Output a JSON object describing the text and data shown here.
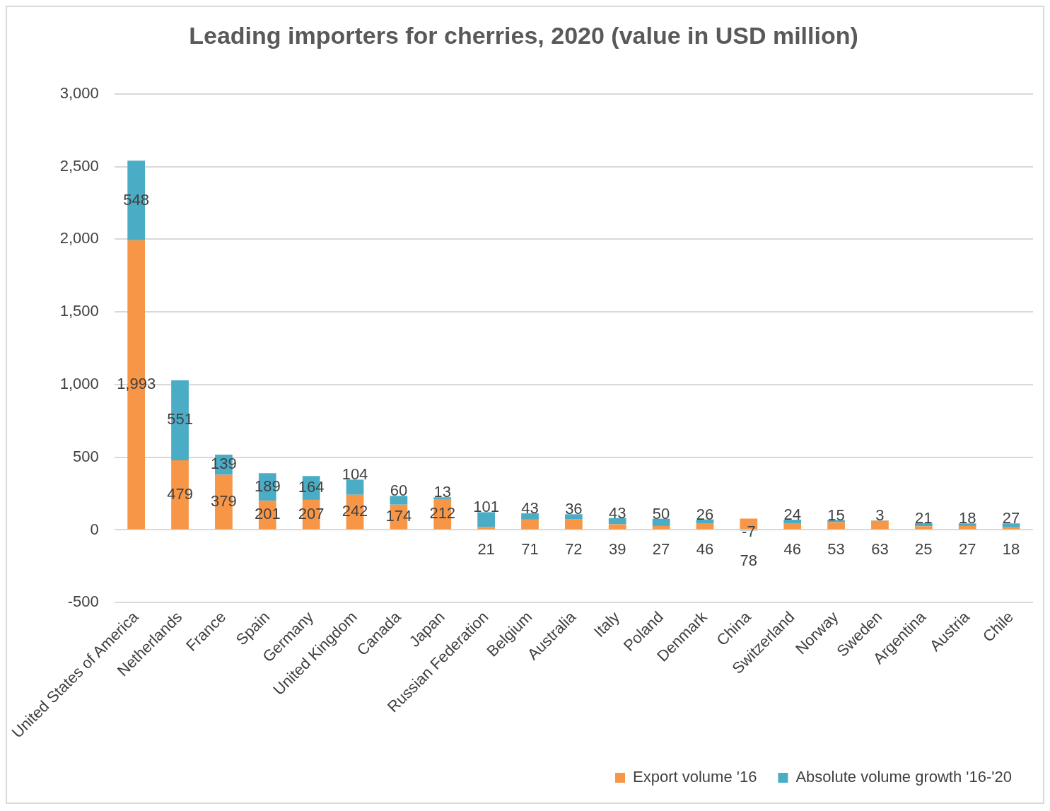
{
  "chart_data": {
    "type": "bar",
    "title": "Leading importers for cherries, 2020 (value in USD million)",
    "categories": [
      "United States of America",
      "Netherlands",
      "France",
      "Spain",
      "Germany",
      "United Kingdom",
      "Canada",
      "Japan",
      "Russian Federation",
      "Belgium",
      "Australia",
      "Italy",
      "Poland",
      "Denmark",
      "China",
      "Switzerland",
      "Norway",
      "Sweden",
      "Argentina",
      "Austria",
      "Chile"
    ],
    "series": [
      {
        "name": "Export volume '16",
        "color": "#f79646",
        "values": [
          1993,
          479,
          379,
          201,
          207,
          242,
          174,
          212,
          21,
          71,
          72,
          39,
          27,
          46,
          78,
          46,
          53,
          63,
          25,
          27,
          18
        ],
        "value_labels": [
          "1,993",
          "479",
          "379",
          "201",
          "207",
          "242",
          "174",
          "212",
          "21",
          "71",
          "72",
          "39",
          "27",
          "46",
          "78",
          "46",
          "53",
          "63",
          "25",
          "27",
          "18"
        ]
      },
      {
        "name": "Absolute volume growth '16-'20",
        "color": "#4bacc6",
        "values": [
          548,
          551,
          139,
          189,
          164,
          104,
          60,
          13,
          101,
          43,
          36,
          43,
          50,
          26,
          -7,
          24,
          15,
          3,
          21,
          18,
          27
        ],
        "value_labels": [
          "548",
          "551",
          "139",
          "189",
          "164",
          "104",
          "60",
          "13",
          "101",
          "43",
          "36",
          "43",
          "50",
          "26",
          "-7",
          "24",
          "15",
          "3",
          "21",
          "18",
          "27"
        ]
      }
    ],
    "stacked": true,
    "ylim": [
      -500,
      3000
    ],
    "yticks": [
      -500,
      0,
      500,
      {
        "value": 1000,
        "label": "1,000"
      },
      {
        "value": 1500,
        "label": "1,500"
      },
      {
        "value": 2000,
        "label": "2,000"
      },
      {
        "value": 2500,
        "label": "2,500"
      },
      {
        "value": 3000,
        "label": "3,000"
      }
    ],
    "grid": "y",
    "legend": "bottom right"
  }
}
